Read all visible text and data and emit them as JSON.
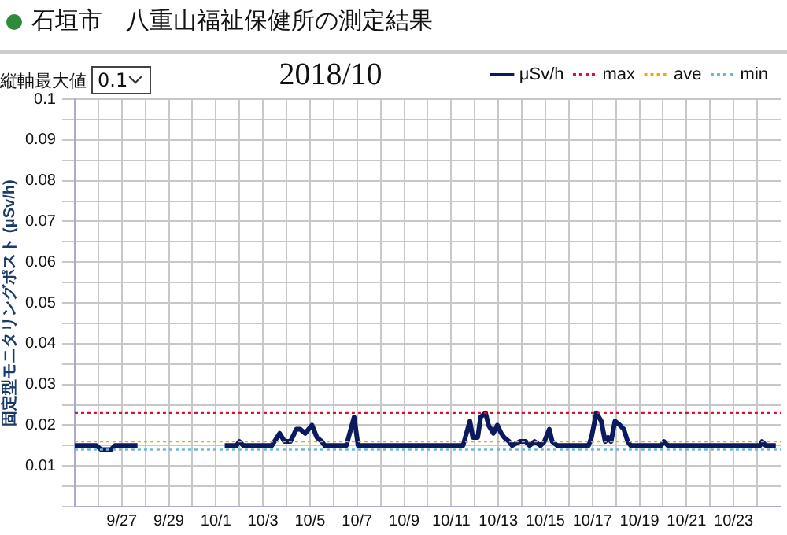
{
  "chart_data": {
    "type": "line",
    "title": "2018/10",
    "subtitle": "石垣市　八重山福祉保健所の測定結果",
    "ylabel": "固定型モニタリングポスト (μSv/h)",
    "annotations": [
      "縦軸最大値",
      "0.1"
    ],
    "xlim": [
      "2018-09-25",
      "2018-10-25"
    ],
    "xticks": [
      {
        "value": "2018-09-26",
        "label": null
      },
      {
        "value": "2018-09-27",
        "label": "9/27"
      },
      {
        "value": "2018-09-28",
        "label": null
      },
      {
        "value": "2018-09-29",
        "label": "9/29"
      },
      {
        "value": "2018-09-30",
        "label": null
      },
      {
        "value": "2018-10-01",
        "label": "10/1"
      },
      {
        "value": "2018-10-02",
        "label": null
      },
      {
        "value": "2018-10-03",
        "label": "10/3"
      },
      {
        "value": "2018-10-04",
        "label": null
      },
      {
        "value": "2018-10-05",
        "label": "10/5"
      },
      {
        "value": "2018-10-06",
        "label": null
      },
      {
        "value": "2018-10-07",
        "label": "10/7"
      },
      {
        "value": "2018-10-08",
        "label": null
      },
      {
        "value": "2018-10-09",
        "label": "10/9"
      },
      {
        "value": "2018-10-10",
        "label": null
      },
      {
        "value": "2018-10-11",
        "label": "10/11"
      },
      {
        "value": "2018-10-12",
        "label": null
      },
      {
        "value": "2018-10-13",
        "label": "10/13"
      },
      {
        "value": "2018-10-14",
        "label": null
      },
      {
        "value": "2018-10-15",
        "label": "10/15"
      },
      {
        "value": "2018-10-16",
        "label": null
      },
      {
        "value": "2018-10-17",
        "label": "10/17"
      },
      {
        "value": "2018-10-18",
        "label": null
      },
      {
        "value": "2018-10-19",
        "label": "10/19"
      },
      {
        "value": "2018-10-20",
        "label": null
      },
      {
        "value": "2018-10-21",
        "label": "10/21"
      },
      {
        "value": "2018-10-22",
        "label": null
      },
      {
        "value": "2018-10-23",
        "label": "10/23"
      },
      {
        "value": "2018-10-24",
        "label": null
      }
    ],
    "ylim": [
      0,
      0.1
    ],
    "yticks": [
      {
        "value": 0,
        "label": null
      },
      {
        "value": 0.005,
        "label": null
      },
      0.01,
      {
        "value": 0.015,
        "label": null
      },
      0.02,
      {
        "value": 0.025,
        "label": null
      },
      0.03,
      {
        "value": 0.035,
        "label": null
      },
      0.04,
      {
        "value": 0.045,
        "label": null
      },
      0.05,
      {
        "value": 0.055,
        "label": null
      },
      0.06,
      {
        "value": 0.065,
        "label": null
      },
      0.07,
      {
        "value": 0.075,
        "label": null
      },
      0.08,
      {
        "value": 0.085,
        "label": null
      },
      0.09,
      {
        "value": 0.095,
        "label": null
      },
      0.1
    ],
    "grid": true,
    "legend": "top right",
    "marker": "none",
    "series": [
      {
        "name": "μSv/h",
        "type": "line",
        "color": "#0b1a5e",
        "line_style": "solid",
        "x": [
          "2018-09-25T00:00",
          "2018-09-25T22:00",
          "2018-09-26T03:00",
          "2018-09-26T13:00",
          "2018-09-26T17:00",
          "2018-09-27T16:00",
          "2018-09-29T00:00",
          "2018-10-01T09:00",
          "2018-10-01T21:00",
          "2018-10-02T00:00",
          "2018-10-02T04:00",
          "2018-10-03T09:00",
          "2018-10-03T17:00",
          "2018-10-03T22:00",
          "2018-10-04T04:00",
          "2018-10-04T10:00",
          "2018-10-04T14:00",
          "2018-10-04T19:00",
          "2018-10-05T02:00",
          "2018-10-05T07:00",
          "2018-10-05T12:00",
          "2018-10-05T15:00",
          "2018-10-06T13:00",
          "2018-10-06T21:00",
          "2018-10-07T01:00",
          "2018-10-11T12:00",
          "2018-10-11T19:00",
          "2018-10-11T22:00",
          "2018-10-12T03:00",
          "2018-10-12T06:00",
          "2018-10-12T11:00",
          "2018-10-12T14:00",
          "2018-10-12T19:00",
          "2018-10-12T23:00",
          "2018-10-13T03:00",
          "2018-10-13T06:00",
          "2018-10-13T11:00",
          "2018-10-13T14:00",
          "2018-10-13T22:00",
          "2018-10-14T04:00",
          "2018-10-14T08:00",
          "2018-10-14T13:00",
          "2018-10-14T19:00",
          "2018-10-14T23:00",
          "2018-10-15T04:00",
          "2018-10-15T07:00",
          "2018-10-15T12:00",
          "2018-10-16T20:00",
          "2018-10-16T23:00",
          "2018-10-17T04:00",
          "2018-10-17T09:00",
          "2018-10-17T13:00",
          "2018-10-17T16:00",
          "2018-10-17T19:00",
          "2018-10-17T23:00",
          "2018-10-18T04:00",
          "2018-10-18T08:00",
          "2018-10-18T12:00",
          "2018-10-18T15:00",
          "2018-10-19T22:00",
          "2018-10-20T01:00",
          "2018-10-20T05:00",
          "2018-10-24T03:00",
          "2018-10-24T05:00",
          "2018-10-24T09:00",
          "2018-10-24T19:00"
        ],
        "values": [
          0.015,
          0.015,
          0.014,
          0.014,
          0.015,
          0.015,
          null,
          0.015,
          0.015,
          0.016,
          0.015,
          0.015,
          0.018,
          0.016,
          0.016,
          0.019,
          0.019,
          0.018,
          0.02,
          0.017,
          0.016,
          0.015,
          0.015,
          0.022,
          0.015,
          0.015,
          0.021,
          0.017,
          0.017,
          0.022,
          0.023,
          0.02,
          0.018,
          0.02,
          0.018,
          0.017,
          0.016,
          0.015,
          0.016,
          0.016,
          0.015,
          0.016,
          0.015,
          0.016,
          0.019,
          0.016,
          0.015,
          0.015,
          0.017,
          0.023,
          0.021,
          0.016,
          0.017,
          0.016,
          0.021,
          0.02,
          0.019,
          0.016,
          0.015,
          0.015,
          0.016,
          0.015,
          0.015,
          0.016,
          0.015,
          0.015
        ]
      },
      {
        "name": "max",
        "type": "line",
        "color": "#e0102a",
        "line_style": "dotted",
        "x": [
          "2018-09-25",
          "2018-10-25"
        ],
        "values": [
          0.023,
          0.023
        ]
      },
      {
        "name": "ave",
        "type": "line",
        "color": "#f2a900",
        "line_style": "dotted",
        "x": [
          "2018-09-25",
          "2018-10-25"
        ],
        "values": [
          0.016,
          0.016
        ]
      },
      {
        "name": "min",
        "type": "line",
        "color": "#6bb8d8",
        "line_style": "dotted",
        "x": [
          "2018-09-25",
          "2018-10-25"
        ],
        "values": [
          0.014,
          0.014
        ]
      }
    ]
  }
}
